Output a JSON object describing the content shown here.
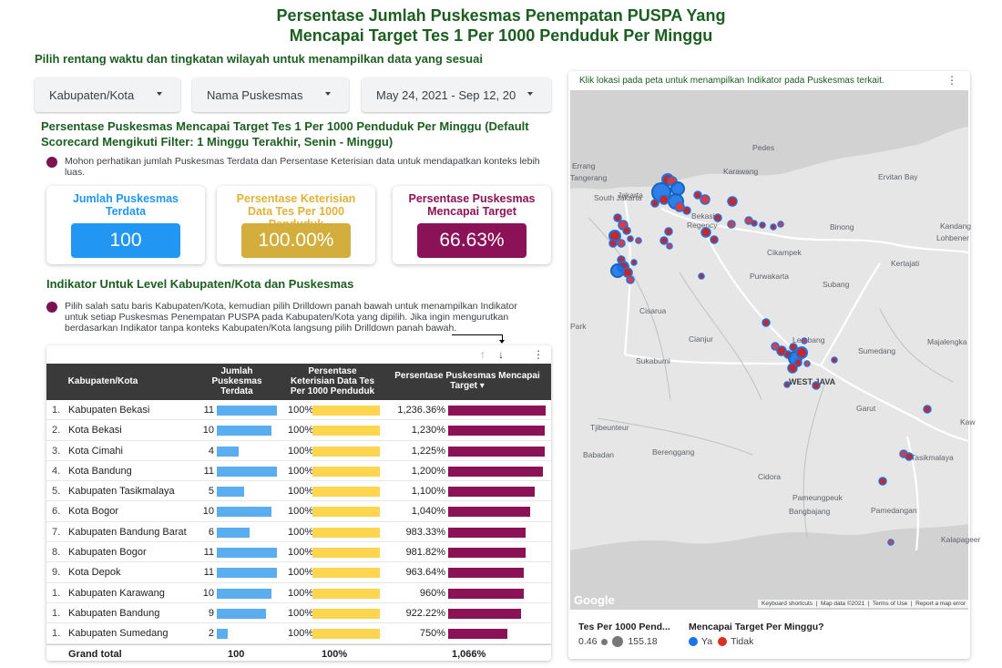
{
  "title": {
    "line1": "Persentase Jumlah Puskesmas Penempatan PUSPA Yang",
    "line2": "Mencapai Target Tes 1 Per 1000 Penduduk Per Minggu"
  },
  "subtitle": "Pilih rentang waktu dan tingkatan wilayah untuk menampilkan data yang sesuai",
  "filters": {
    "kabupaten": "Kabupaten/Kota",
    "puskesmas": "Nama Puskesmas",
    "date_range": "May 24, 2021 - Sep 12, 20"
  },
  "section1": {
    "title": "Persentase Puskesmas Mencapai Target Tes 1 Per 1000 Penduduk Per Minggu (Default Scorecard Mengikuti Filter: 1 Minggu Terakhir, Senin - Minggu)",
    "note": "Mohon perhatikan jumlah Puskesmas Terdata dan Persentase Keterisian data untuk mendapatkan konteks lebih luas."
  },
  "scorecards": [
    {
      "label": "Jumlah Puskesmas Terdata",
      "value": "100",
      "color": "#2196f3",
      "label_color": "#2196f3"
    },
    {
      "label": "Persentase Keterisian Data Tes Per 1000 Penduduk",
      "value": "100.00%",
      "color": "#d4ae3c",
      "label_color": "#e0b23a"
    },
    {
      "label": "Persentase Puskesmas Mencapai  Target",
      "value": "66.63%",
      "color": "#8b1257",
      "label_color": "#8b1257"
    }
  ],
  "section2": {
    "title": "Indikator Untuk Level Kabupaten/Kota dan Puskesmas",
    "note": "Pilih salah satu baris Kabupaten/Kota, kemudian pilih Drilldown panah bawah untuk menampilkan Indikator untuk setiap Puskesmas Penempatan PUSPA pada Kabupaten/Kota yang dipilih. Jika ingin mengurutkan berdasarkan Indikator tanpa konteks Kabupaten/Kota langsung pilih Drilldown panah bawah."
  },
  "table": {
    "headers": {
      "kab": "Kabupaten/Kota",
      "jumlah": "Jumlah Puskesmas Terdata",
      "keterisian": "Persentase Keterisian Data Tes Per 1000 Penduduk",
      "target": "Persentase Puskesmas Mencapai Target"
    },
    "rows": [
      {
        "idx": "1.",
        "name": "Kabupaten Bekasi",
        "jumlah": 11,
        "jumlah_text": "11",
        "ket": "100%",
        "target_text": "1,236.36%",
        "target": 1236.36
      },
      {
        "idx": "2.",
        "name": "Kota Bekasi",
        "jumlah": 10,
        "jumlah_text": "10",
        "ket": "100%",
        "target_text": "1,230%",
        "target": 1230
      },
      {
        "idx": "3.",
        "name": "Kota Cimahi",
        "jumlah": 4,
        "jumlah_text": "4",
        "ket": "100%",
        "target_text": "1,225%",
        "target": 1225
      },
      {
        "idx": "4.",
        "name": "Kota Bandung",
        "jumlah": 11,
        "jumlah_text": "11",
        "ket": "100%",
        "target_text": "1,200%",
        "target": 1200
      },
      {
        "idx": "5.",
        "name": "Kabupaten Tasikmalaya",
        "jumlah": 5,
        "jumlah_text": "5",
        "ket": "100%",
        "target_text": "1,100%",
        "target": 1100
      },
      {
        "idx": "6.",
        "name": "Kota Bogor",
        "jumlah": 10,
        "jumlah_text": "10",
        "ket": "100%",
        "target_text": "1,040%",
        "target": 1040
      },
      {
        "idx": "7.",
        "name": "Kabupaten Bandung Barat",
        "jumlah": 6,
        "jumlah_text": "6",
        "ket": "100%",
        "target_text": "983.33%",
        "target": 983.33
      },
      {
        "idx": "8.",
        "name": "Kabupaten Bogor",
        "jumlah": 11,
        "jumlah_text": "11",
        "ket": "100%",
        "target_text": "981.82%",
        "target": 981.82
      },
      {
        "idx": "9.",
        "name": "Kota Depok",
        "jumlah": 11,
        "jumlah_text": "11",
        "ket": "100%",
        "target_text": "963.64%",
        "target": 963.64
      },
      {
        "idx": "1.",
        "name": "Kabupaten Karawang",
        "jumlah": 10,
        "jumlah_text": "10",
        "ket": "100%",
        "target_text": "960%",
        "target": 960
      },
      {
        "idx": "1.",
        "name": "Kabupaten Bandung",
        "jumlah": 9,
        "jumlah_text": "9",
        "ket": "100%",
        "target_text": "922.22%",
        "target": 922.22
      },
      {
        "idx": "1.",
        "name": "Kabupaten Sumedang",
        "jumlah": 2,
        "jumlah_text": "2",
        "ket": "100%",
        "target_text": "750%",
        "target": 750
      }
    ],
    "grand_total": {
      "label": "Grand total",
      "jumlah": "100",
      "ket": "100%",
      "target": "1,066%"
    }
  },
  "map": {
    "header": "Klik lokasi pada peta untuk menampilkan Indikator pada Puskesmas terkait.",
    "places": [
      "Pedes",
      "Karawang",
      "Jakarta",
      "South Jakarta",
      "Tangerang",
      "Bekasi",
      "Regency",
      "Errang",
      "Ervitan Bay",
      "Cikampek",
      "Binong",
      "Lohbener",
      "Kandang",
      "Kertajati",
      "Purwakarta",
      "Subang",
      "Cisarua",
      "Cianjur",
      "Sumedang",
      "Majalengka",
      "Sukabumi",
      "Lembang",
      "WEST JAVA",
      "Garut",
      "Tasikmalaya",
      "Tjibeunteur",
      "Babadan",
      "Berenggang",
      "Cidora",
      "Pameungpeuk",
      "Bangbajang",
      "Pamedangan",
      "Kalapageer",
      "Kaw",
      "Park",
      "Google"
    ],
    "footer": [
      "Keyboard shortcuts",
      "Map data ©2021",
      "Terms of Use",
      "Report a map error"
    ]
  },
  "legend": {
    "size_title": "Tes Per 1000 Pend...",
    "size_min": "0.46",
    "size_max": "155.18",
    "color_title": "Mencapai Target Per Minggu?",
    "ya": "Ya",
    "tidak": "Tidak",
    "ya_color": "#1a73e8",
    "tidak_color": "#d93025"
  },
  "colors": {
    "green_title": "#1b5e20",
    "bar_blue": "#5aaef0",
    "bar_yellow": "#fdd54f",
    "bar_purple": "#8b1257"
  }
}
